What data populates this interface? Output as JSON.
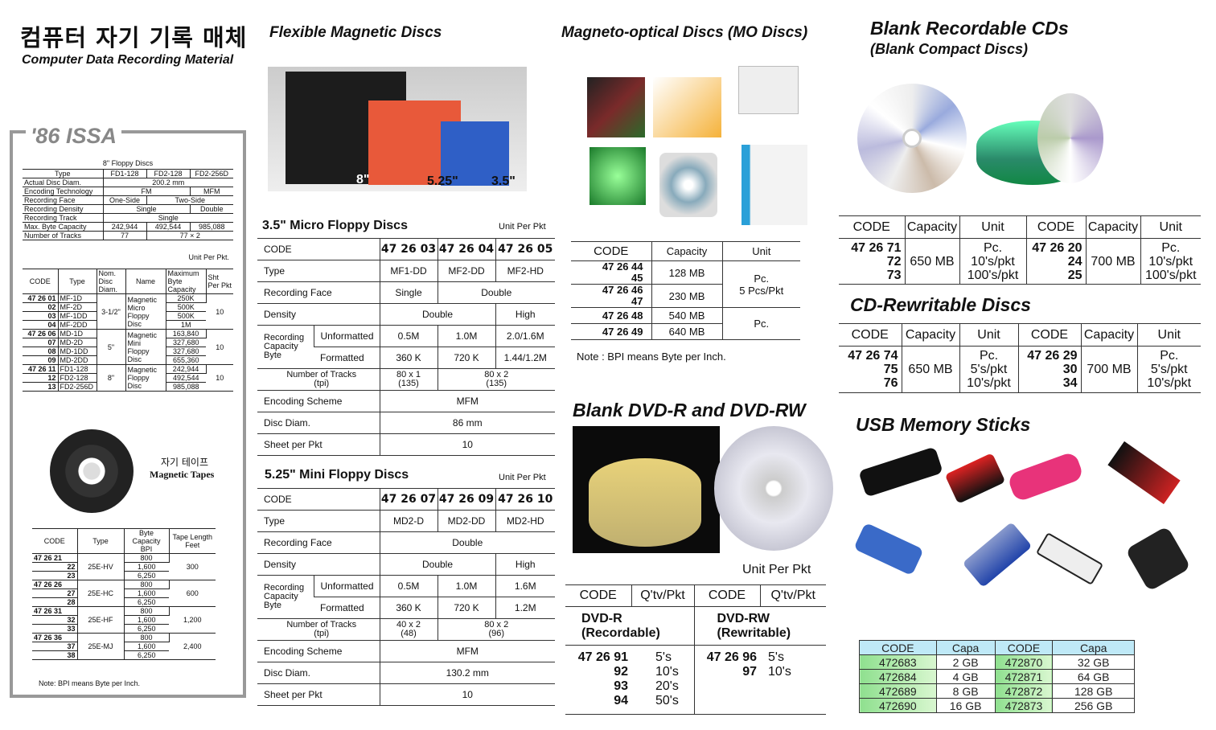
{
  "title": {
    "ko": "컴퓨터 자기 기록 매체",
    "en": "Computer Data Recording Material"
  },
  "issa": {
    "label": "'86 ISSA",
    "f8": {
      "cap": "8\" Floppy Discs",
      "r": [
        [
          "Type",
          "FD1-128",
          "FD2-128",
          "FD2-256D"
        ],
        [
          "Actual Disc Diam.",
          "200.2 mm"
        ],
        [
          "Encoding Technology",
          "FM",
          "MFM"
        ],
        [
          "Recording Face",
          "One-Side",
          "Two-Side"
        ],
        [
          "Recording Density",
          "Single",
          "Double"
        ],
        [
          "Recording Track",
          "Single"
        ],
        [
          "Max. Byte Capacity",
          "242,944",
          "492,544",
          "985,088"
        ],
        [
          "Number of Tracks",
          "77",
          "77 × 2"
        ]
      ]
    },
    "unit": "Unit Per Pkt.",
    "codes": {
      "h": [
        "CODE",
        "Type",
        "Nom. Disc Diam.",
        "Name",
        "Maximum Byte Capacity",
        "Sht Per Pkt"
      ],
      "g": [
        {
          "c": [
            "47 26 01",
            "02",
            "03",
            "04"
          ],
          "t": [
            "MF-1D",
            "MF-2D",
            "MF-1DD",
            "MF-2DD"
          ],
          "d": "3-1/2\"",
          "n": "Magnetic Micro Floppy Disc",
          "cap": [
            "250K",
            "500K",
            "500K",
            "1M"
          ],
          "s": "10"
        },
        {
          "c": [
            "47 26 06",
            "07",
            "08",
            "09"
          ],
          "t": [
            "MD-1D",
            "MD-2D",
            "MD-1DD",
            "MD-2DD"
          ],
          "d": "5\"",
          "n": "Magnetic Mini Floppy Disc",
          "cap": [
            "163,840",
            "327,680",
            "327,680",
            "655,360"
          ],
          "s": "10"
        },
        {
          "c": [
            "47 26 11",
            "12",
            "13"
          ],
          "t": [
            "FD1-128",
            "FD2-128",
            "FD2-256D"
          ],
          "d": "8\"",
          "n": "Magnetic Floppy Disc",
          "cap": [
            "242,944",
            "492,544",
            "985,088"
          ],
          "s": "10"
        }
      ]
    },
    "tape": {
      "ko": "자기 테이프",
      "en": "Magnetic Tapes"
    },
    "tapes": {
      "h": [
        "CODE",
        "Type",
        "Byte Capacity BPI",
        "Tape Length Feet"
      ],
      "g": [
        {
          "c": [
            "47 26 21",
            "22",
            "23"
          ],
          "t": "25E-HV",
          "b": [
            "800",
            "1,600",
            "6,250"
          ],
          "l": "300"
        },
        {
          "c": [
            "47 26 26",
            "27",
            "28"
          ],
          "t": "25E-HC",
          "b": [
            "800",
            "1,600",
            "6,250"
          ],
          "l": "600"
        },
        {
          "c": [
            "47 26 31",
            "32",
            "33"
          ],
          "t": "25E-HF",
          "b": [
            "800",
            "1,600",
            "6,250"
          ],
          "l": "1,200"
        },
        {
          "c": [
            "47 26 36",
            "37",
            "38"
          ],
          "t": "25E-MJ",
          "b": [
            "800",
            "1,600",
            "6,250"
          ],
          "l": "2,400"
        }
      ]
    },
    "note": "Note:   BPI means Byte per  Inch."
  },
  "flex": {
    "title": "Flexible Magnetic Discs",
    "img_labels": [
      "8\"",
      "5.25\"",
      "3.5\""
    ]
  },
  "m35": {
    "title": "3.5\" Micro Floppy  Discs",
    "unit": "Unit Per Pkt",
    "code": "CODE",
    "codes": [
      "47 26 03",
      "47 26 04",
      "47 26 05"
    ],
    "type": "Type",
    "types": [
      "MF1-DD",
      "MF2-DD",
      "MF2-HD"
    ],
    "face": "Recording Face",
    "faces": [
      "Single",
      "Double"
    ],
    "dens": "Density",
    "denss": [
      "Double",
      "High"
    ],
    "rc": "Recording Capacity Byte",
    "unf": "Unformatted",
    "unfs": [
      "0.5M",
      "1.0M",
      "2.0/1.6M"
    ],
    "fmt": "Formatted",
    "fmts": [
      "360 K",
      "720 K",
      "1.44/1.2M"
    ],
    "trk": "Number  of Tracks",
    "tpi": "(tpi)",
    "trks": [
      [
        "80 x 1",
        "(135)"
      ],
      [
        "80 x 2",
        "(135)"
      ]
    ],
    "enc": "Encoding Scheme",
    "encv": "MFM",
    "diam": "Disc Diam.",
    "diamv": "86 mm",
    "sheet": "Sheet per Pkt",
    "sheetv": "10"
  },
  "m525": {
    "title": "5.25\" Mini Floppy Discs",
    "unit": "Unit Per Pkt",
    "code": "CODE",
    "codes": [
      "47 26 07",
      "47 26 09",
      "47 26 10"
    ],
    "type": "Type",
    "types": [
      "MD2-D",
      "MD2-DD",
      "MD2-HD"
    ],
    "face": "Recording Face",
    "facev": "Double",
    "dens": "Density",
    "denss": [
      "Double",
      "High"
    ],
    "rc": "Recording Capacity Byte",
    "unf": "Unformatted",
    "unfs": [
      "0.5M",
      "1.0M",
      "1.6M"
    ],
    "fmt": "Formatted",
    "fmts": [
      "360 K",
      "720 K",
      "1.2M"
    ],
    "trk": "Number  of Tracks",
    "tpi": "(tpi)",
    "trks": [
      [
        "40 x 2",
        "(48)"
      ],
      [
        "80 x 2",
        "(96)"
      ]
    ],
    "enc": "Encoding Scheme",
    "encv": "MFM",
    "diam": "Disc Diam.",
    "diamv": "130.2 mm",
    "sheet": "Sheet per Pkt",
    "sheetv": "10"
  },
  "mo": {
    "title": "Magneto-optical Discs (MO Discs)",
    "h": [
      "CODE",
      "Capacity",
      "Unit"
    ],
    "rows": [
      {
        "c": "47 26 44",
        "c2": "45",
        "cap": "128 MB"
      },
      {
        "c": "47 26 46",
        "c2": "47",
        "cap": "230 MB"
      },
      {
        "c": "47 26 48",
        "cap": "540 MB"
      },
      {
        "c": "47 26 49",
        "cap": "640 MB"
      }
    ],
    "unit1": "Pc.",
    "unit1b": "5 Pcs/Pkt",
    "unit2": "Pc.",
    "note": "Note :   BPI means Byte per Inch."
  },
  "dvd": {
    "title": "Blank DVD-R and DVD-RW",
    "unit": "Unit Per Pkt",
    "h": [
      "CODE",
      "Q'tv/Pkt",
      "CODE",
      "Q'tv/Pkt"
    ],
    "r_name": "DVD-R",
    "r_sub": "(Recordable)",
    "rw_name": "DVD-RW",
    "rw_sub": "(Rewritable)",
    "r_codes": [
      "47 26 91",
      "92",
      "93",
      "94"
    ],
    "r_qty": [
      "5's",
      "10's",
      "20's",
      "50's"
    ],
    "rw_codes": [
      "47 26 96",
      "97"
    ],
    "rw_qty": [
      "5's",
      "10's"
    ]
  },
  "cdr": {
    "title": "Blank Recordable CDs",
    "sub": "(Blank Compact Discs)",
    "h": [
      "CODE",
      "Capacity",
      "Unit",
      "CODE",
      "Capacity",
      "Unit"
    ],
    "a_codes": [
      "47 26 71",
      "72",
      "73"
    ],
    "a_cap": "650 MB",
    "b_codes": [
      "47 26 20",
      "24",
      "25"
    ],
    "b_cap": "700 MB",
    "units": [
      "Pc.",
      "10's/pkt",
      "100's/pkt"
    ]
  },
  "cdrw": {
    "title": "CD-Rewritable Discs",
    "h": [
      "CODE",
      "Capacity",
      "Unit",
      "CODE",
      "Capacity",
      "Unit"
    ],
    "a_codes": [
      "47 26 74",
      "75",
      "76"
    ],
    "a_cap": "650 MB",
    "b_codes": [
      "47 26 29",
      "30",
      "34"
    ],
    "b_cap": "700 MB",
    "units": [
      "Pc.",
      "5's/pkt",
      "10's/pkt"
    ]
  },
  "usb": {
    "title": "USB Memory Sticks",
    "h": [
      "CODE",
      "Capa",
      "CODE",
      "Capa"
    ],
    "rows": [
      [
        "472683",
        "2 GB",
        "472870",
        "32 GB"
      ],
      [
        "472684",
        "4 GB",
        "472871",
        "64 GB"
      ],
      [
        "472689",
        "8 GB",
        "472872",
        "128 GB"
      ],
      [
        "472690",
        "16 GB",
        "472873",
        "256 GB"
      ]
    ],
    "colors": {
      "header": "#bfe9f7",
      "code": "#8fe08f"
    }
  }
}
